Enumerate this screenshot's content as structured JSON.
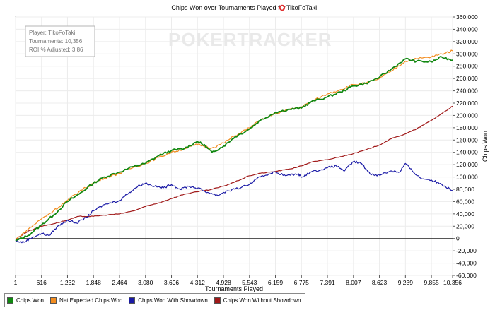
{
  "chart_data": {
    "type": "line",
    "title": "Chips Won over Tournaments Played for",
    "player_name": "TikoFoTaki",
    "xlabel": "Tournaments Played",
    "ylabel": "Chips Won",
    "xlim": [
      1,
      10356
    ],
    "ylim": [
      -60000,
      360000
    ],
    "x_ticks": [
      1,
      616,
      1232,
      1848,
      2464,
      3080,
      3696,
      4312,
      4928,
      5543,
      6159,
      6775,
      7391,
      8007,
      8623,
      9239,
      9855,
      10356
    ],
    "x_tick_labels": [
      "1",
      "616",
      "1,232",
      "1,848",
      "2,464",
      "3,080",
      "3,696",
      "4,312",
      "4,928",
      "5,543",
      "6,159",
      "6,775",
      "7,391",
      "8,007",
      "8,623",
      "9,239",
      "9,855",
      "10,356"
    ],
    "y_ticks": [
      -60000,
      -40000,
      -20000,
      0,
      20000,
      40000,
      60000,
      80000,
      100000,
      120000,
      140000,
      160000,
      180000,
      200000,
      220000,
      240000,
      260000,
      280000,
      300000,
      320000,
      340000,
      360000
    ],
    "y_tick_labels": [
      "-60,000",
      "-40,000",
      "-20,000",
      "0",
      "20,000",
      "40,000",
      "60,000",
      "80,000",
      "100,000",
      "120,000",
      "140,000",
      "160,000",
      "180,000",
      "200,000",
      "220,000",
      "240,000",
      "260,000",
      "280,000",
      "300,000",
      "320,000",
      "340,000",
      "360,000"
    ],
    "grid": true,
    "legend_position": "bottom-left",
    "info_box": [
      "Player: TikoFoTaki",
      "Tournaments: 10,356",
      "ROI % Adjusted: 3.86"
    ],
    "watermark": "POKERTRACKER",
    "series": [
      {
        "name": "Chips Won",
        "color": "#118811",
        "x": [
          1,
          300,
          616,
          900,
          1232,
          1500,
          1848,
          2100,
          2464,
          2800,
          3080,
          3400,
          3696,
          4000,
          4312,
          4500,
          4650,
          4928,
          5200,
          5543,
          5800,
          6159,
          6500,
          6775,
          7000,
          7391,
          7700,
          8007,
          8300,
          8623,
          8900,
          9239,
          9500,
          9855,
          10100,
          10356
        ],
        "y": [
          -4000,
          5000,
          22000,
          38000,
          60000,
          72000,
          90000,
          100000,
          108000,
          117000,
          122000,
          135000,
          143000,
          146000,
          158000,
          150000,
          140000,
          150000,
          165000,
          178000,
          192000,
          205000,
          210000,
          212000,
          222000,
          230000,
          238000,
          248000,
          252000,
          262000,
          275000,
          292000,
          288000,
          287000,
          295000,
          290000
        ]
      },
      {
        "name": "Net Expected Chips Won",
        "color": "#f28c1f",
        "x": [
          1,
          300,
          616,
          900,
          1232,
          1500,
          1848,
          2100,
          2464,
          2800,
          3080,
          3400,
          3696,
          4000,
          4312,
          4650,
          4928,
          5200,
          5543,
          5800,
          6159,
          6500,
          6775,
          7000,
          7391,
          7700,
          8007,
          8300,
          8623,
          8900,
          9239,
          9500,
          9855,
          10100,
          10356
        ],
        "y": [
          -2000,
          15000,
          32000,
          45000,
          62000,
          76000,
          90000,
          98000,
          106000,
          116000,
          122000,
          132000,
          140000,
          146000,
          153000,
          147000,
          155000,
          167000,
          180000,
          192000,
          203000,
          210000,
          214000,
          222000,
          235000,
          242000,
          250000,
          252000,
          260000,
          272000,
          288000,
          292000,
          295000,
          300000,
          305000
        ]
      },
      {
        "name": "Chips Won With Showdown",
        "color": "#1a1aa6",
        "x": [
          1,
          200,
          400,
          616,
          800,
          1000,
          1232,
          1450,
          1700,
          1848,
          2100,
          2464,
          2700,
          2900,
          3080,
          3300,
          3500,
          3696,
          3900,
          4100,
          4312,
          4550,
          4800,
          4928,
          5200,
          5543,
          5800,
          6000,
          6159,
          6400,
          6700,
          6775,
          7000,
          7391,
          7600,
          7800,
          8007,
          8200,
          8400,
          8623,
          8900,
          9100,
          9239,
          9400,
          9600,
          9855,
          10100,
          10356
        ],
        "y": [
          -4000,
          -6000,
          2000,
          8000,
          5000,
          20000,
          30000,
          25000,
          35000,
          45000,
          55000,
          62000,
          75000,
          85000,
          90000,
          85000,
          82000,
          88000,
          80000,
          85000,
          82000,
          75000,
          70000,
          75000,
          80000,
          88000,
          100000,
          105000,
          108000,
          102000,
          105000,
          100000,
          108000,
          115000,
          118000,
          110000,
          125000,
          122000,
          105000,
          103000,
          110000,
          108000,
          122000,
          110000,
          98000,
          95000,
          88000,
          78000
        ]
      },
      {
        "name": "Chips Won Without Showdown",
        "color": "#a01818",
        "x": [
          1,
          300,
          616,
          900,
          1232,
          1500,
          1848,
          2100,
          2464,
          2800,
          3080,
          3400,
          3696,
          4000,
          4312,
          4600,
          4928,
          5200,
          5543,
          5800,
          6159,
          6500,
          6775,
          7000,
          7391,
          7700,
          8007,
          8300,
          8623,
          8900,
          9239,
          9500,
          9855,
          10100,
          10356
        ],
        "y": [
          -1000,
          12000,
          20000,
          24000,
          30000,
          36000,
          36000,
          38000,
          40000,
          45000,
          52000,
          58000,
          65000,
          72000,
          76000,
          79000,
          85000,
          92000,
          102000,
          106000,
          109000,
          113000,
          118000,
          124000,
          128000,
          133000,
          138000,
          144000,
          152000,
          162000,
          170000,
          178000,
          192000,
          203000,
          215000
        ]
      }
    ]
  }
}
